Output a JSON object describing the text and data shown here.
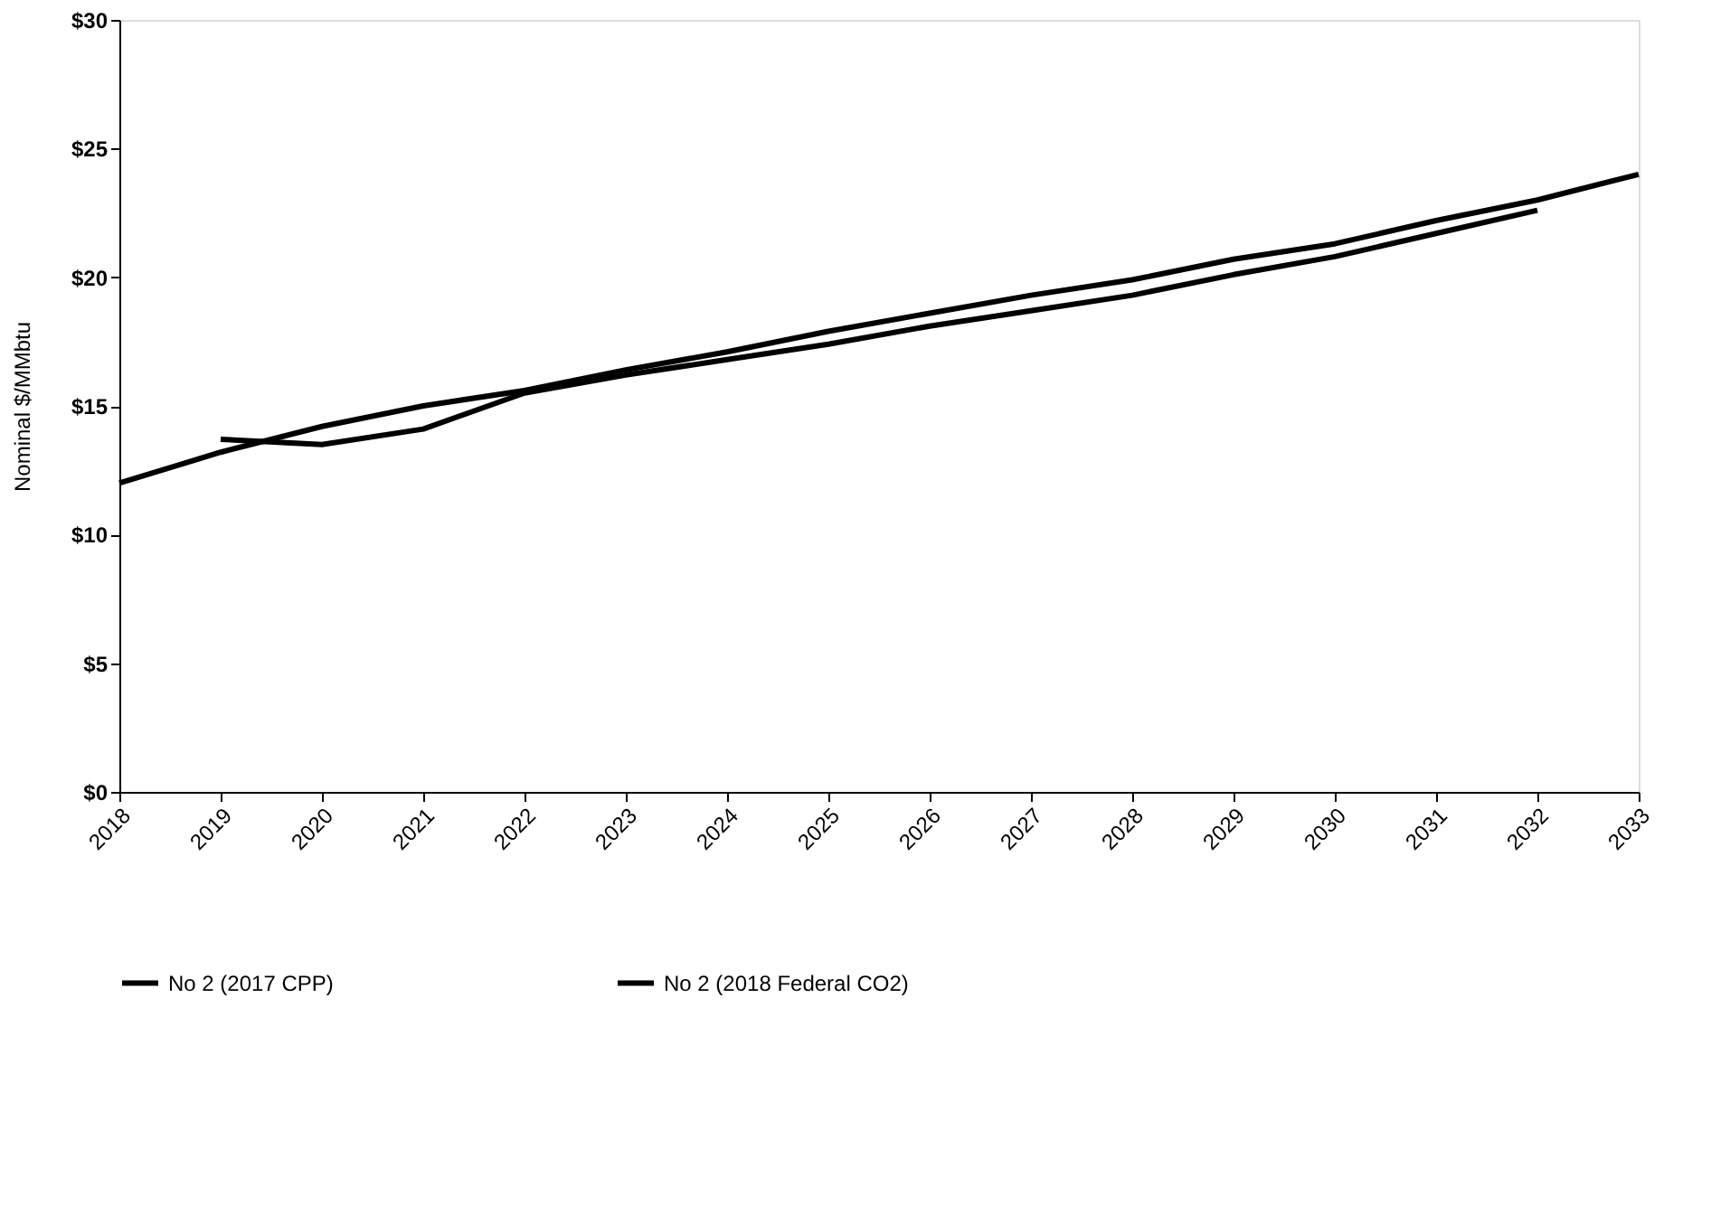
{
  "chart_data": {
    "type": "line",
    "ylabel": "Nominal $/MMbtu",
    "x": [
      2018,
      2019,
      2020,
      2021,
      2022,
      2023,
      2024,
      2025,
      2026,
      2027,
      2028,
      2029,
      2030,
      2031,
      2032,
      2033
    ],
    "series": [
      {
        "name": "No 2 (2017 CPP)",
        "color": "#000000",
        "values": [
          12.0,
          13.2,
          14.2,
          15.0,
          15.6,
          16.4,
          17.1,
          17.9,
          18.6,
          19.3,
          19.9,
          20.7,
          21.3,
          22.2,
          23.0,
          24.0
        ]
      },
      {
        "name": "No 2 (2018 Federal CO2)",
        "color": "#000000",
        "values": [
          null,
          13.7,
          13.5,
          14.1,
          15.5,
          16.2,
          16.8,
          17.4,
          18.1,
          18.7,
          19.3,
          20.1,
          20.8,
          21.7,
          22.6,
          null
        ]
      }
    ],
    "xlim": [
      2018,
      2033
    ],
    "xticks": [
      2018,
      2019,
      2020,
      2021,
      2022,
      2023,
      2024,
      2025,
      2026,
      2027,
      2028,
      2029,
      2030,
      2031,
      2032,
      2033
    ],
    "ylim": [
      0,
      30
    ],
    "yticks": [
      {
        "value": 0,
        "label": "$0"
      },
      {
        "value": 5,
        "label": "$5"
      },
      {
        "value": 10,
        "label": "$10"
      },
      {
        "value": 15,
        "label": "$15"
      },
      {
        "value": 20,
        "label": "$20"
      },
      {
        "value": 25,
        "label": "$25"
      },
      {
        "value": 30,
        "label": "$30"
      }
    ],
    "grid": false,
    "legend": "bottom",
    "marker": "none",
    "line_style": "solid"
  }
}
